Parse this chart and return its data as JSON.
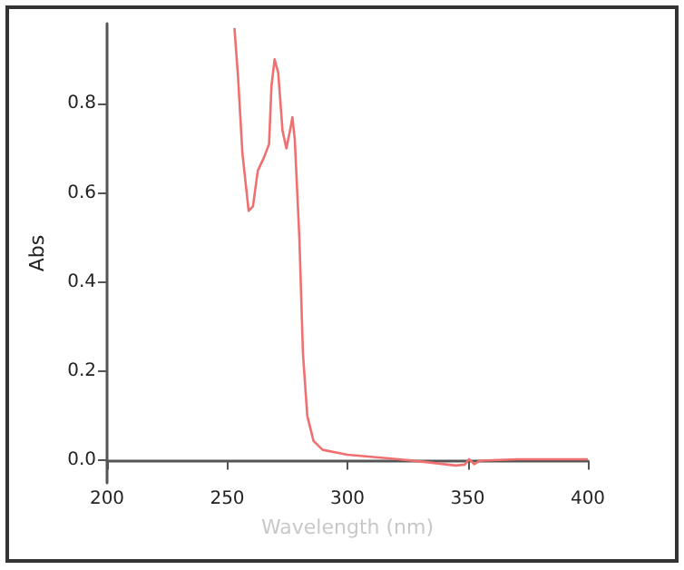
{
  "chart_data": {
    "type": "line",
    "xlabel": "Wavelength (nm)",
    "ylabel": "Abs",
    "xlim": [
      200,
      400
    ],
    "xticks": [
      200,
      250,
      300,
      350,
      400
    ],
    "ylim": [
      -0.05,
      0.98
    ],
    "yticks": [
      {
        "value": 0,
        "label": "0.0"
      },
      {
        "value": 0.2,
        "label": "0.2"
      },
      {
        "value": 0.4,
        "label": "0.4"
      },
      {
        "value": 0.6,
        "label": "0.6"
      },
      {
        "value": 0.8,
        "label": "0.8"
      }
    ],
    "grid": false,
    "marker": "none",
    "line_style": "solid",
    "series": [
      {
        "color": "#ef7070",
        "x": [
          253,
          254.5,
          256.3,
          258.9,
          260.7,
          262.7,
          265.3,
          267.4,
          268.4,
          269.7,
          271.2,
          273,
          274.6,
          276.1,
          277.1,
          278.1,
          280,
          281.5,
          283.3,
          285.9,
          289.7,
          300,
          319.3,
          332,
          345,
          348.8,
          350.6,
          352.7,
          355.3,
          370.7,
          400
        ],
        "values": [
          0.97,
          0.86,
          0.69,
          0.56,
          0.57,
          0.65,
          0.68,
          0.71,
          0.84,
          0.9,
          0.87,
          0.74,
          0.7,
          0.74,
          0.77,
          0.72,
          0.5,
          0.24,
          0.1,
          0.044,
          0.024,
          0.013,
          0.004,
          -0.003,
          -0.011,
          -0.009,
          0.003,
          -0.008,
          0,
          0.003,
          0.003
        ]
      }
    ]
  }
}
